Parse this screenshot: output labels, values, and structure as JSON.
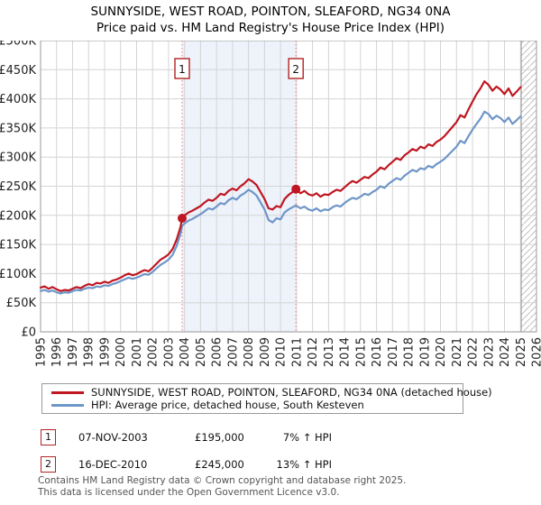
{
  "title": {
    "line1": "SUNNYSIDE, WEST ROAD, POINTON, SLEAFORD, NG34 0NA",
    "line2": "Price paid vs. HM Land Registry's House Price Index (HPI)"
  },
  "legend": {
    "series1": "SUNNYSIDE, WEST ROAD, POINTON, SLEAFORD, NG34 0NA (detached house)",
    "series2": "HPI: Average price, detached house, South Kesteven"
  },
  "annotations": [
    {
      "num": "1",
      "date": "07-NOV-2003",
      "price": "£195,000",
      "hpi": "7% ↑ HPI"
    },
    {
      "num": "2",
      "date": "16-DEC-2010",
      "price": "£245,000",
      "hpi": "13% ↑ HPI"
    }
  ],
  "footer": {
    "line1": "Contains HM Land Registry data © Crown copyright and database right 2025.",
    "line2": "This data is licensed under the Open Government Licence v3.0."
  },
  "colors": {
    "price_line": "#c01621",
    "hpi_line": "#6e96c8",
    "grid": "#d4d4d4",
    "plot_border": "#9a9a9a",
    "sale_dashed_line": "#ef8a8a",
    "shade_fill": "#edf2fb",
    "hatch_stroke": "#c0c0c0",
    "marker_box_border": "#b22222",
    "axis_text": "#222222"
  },
  "chart_data": {
    "type": "line",
    "title": "Price paid vs. HM Land Registry's House Price Index (HPI)",
    "xlabel": "",
    "ylabel": "",
    "x_range": [
      1995,
      2026
    ],
    "y_range": [
      0,
      500000
    ],
    "y_tick_step": 50000,
    "grid": true,
    "legend_position": "bottom",
    "y_tick_labels": [
      "£0",
      "£50K",
      "£100K",
      "£150K",
      "£200K",
      "£250K",
      "£300K",
      "£350K",
      "£400K",
      "£450K",
      "£500K"
    ],
    "x_tick_labels": [
      "1995",
      "1996",
      "1997",
      "1998",
      "1999",
      "2000",
      "2001",
      "2002",
      "2003",
      "2004",
      "2005",
      "2006",
      "2007",
      "2008",
      "2009",
      "2010",
      "2011",
      "2012",
      "2013",
      "2014",
      "2015",
      "2016",
      "2017",
      "2018",
      "2019",
      "2020",
      "2021",
      "2022",
      "2023",
      "2024",
      "2025",
      "2026"
    ],
    "shaded_span": {
      "from": 2003.85,
      "to": 2010.96
    },
    "future_hatch_from": 2025.05,
    "markers": [
      {
        "label": "1",
        "x": 2003.85,
        "value": 195000
      },
      {
        "label": "2",
        "x": 2010.96,
        "value": 245000
      }
    ],
    "series": [
      {
        "name": "SUNNYSIDE, WEST ROAD, POINTON, SLEAFORD, NG34 0NA (detached house)",
        "color": "#c01621",
        "points": [
          [
            1995,
            76000
          ],
          [
            1995.25,
            78000
          ],
          [
            1995.5,
            74000
          ],
          [
            1995.75,
            77000
          ],
          [
            1996,
            73000
          ],
          [
            1996.25,
            70000
          ],
          [
            1996.5,
            72000
          ],
          [
            1996.75,
            71000
          ],
          [
            1997,
            74000
          ],
          [
            1997.25,
            77000
          ],
          [
            1997.5,
            75000
          ],
          [
            1997.75,
            79000
          ],
          [
            1998,
            82000
          ],
          [
            1998.25,
            80000
          ],
          [
            1998.5,
            84000
          ],
          [
            1998.75,
            83000
          ],
          [
            1999,
            86000
          ],
          [
            1999.25,
            84000
          ],
          [
            1999.5,
            88000
          ],
          [
            1999.75,
            90000
          ],
          [
            2000,
            93000
          ],
          [
            2000.25,
            97000
          ],
          [
            2000.5,
            100000
          ],
          [
            2000.75,
            97000
          ],
          [
            2001,
            99000
          ],
          [
            2001.25,
            103000
          ],
          [
            2001.5,
            106000
          ],
          [
            2001.75,
            104000
          ],
          [
            2002,
            110000
          ],
          [
            2002.25,
            117000
          ],
          [
            2002.5,
            124000
          ],
          [
            2002.75,
            128000
          ],
          [
            2003,
            133000
          ],
          [
            2003.25,
            142000
          ],
          [
            2003.5,
            158000
          ],
          [
            2003.75,
            180000
          ],
          [
            2003.85,
            195000
          ],
          [
            2004,
            200000
          ],
          [
            2004.25,
            205000
          ],
          [
            2004.5,
            208000
          ],
          [
            2004.75,
            212000
          ],
          [
            2005,
            216000
          ],
          [
            2005.25,
            222000
          ],
          [
            2005.5,
            227000
          ],
          [
            2005.75,
            225000
          ],
          [
            2006,
            230000
          ],
          [
            2006.25,
            237000
          ],
          [
            2006.5,
            235000
          ],
          [
            2006.75,
            242000
          ],
          [
            2007,
            246000
          ],
          [
            2007.25,
            243000
          ],
          [
            2007.5,
            250000
          ],
          [
            2007.75,
            255000
          ],
          [
            2008,
            262000
          ],
          [
            2008.25,
            258000
          ],
          [
            2008.5,
            252000
          ],
          [
            2008.75,
            240000
          ],
          [
            2009,
            228000
          ],
          [
            2009.25,
            212000
          ],
          [
            2009.5,
            210000
          ],
          [
            2009.75,
            216000
          ],
          [
            2010,
            214000
          ],
          [
            2010.25,
            228000
          ],
          [
            2010.5,
            235000
          ],
          [
            2010.75,
            240000
          ],
          [
            2010.96,
            245000
          ],
          [
            2011.25,
            238000
          ],
          [
            2011.5,
            242000
          ],
          [
            2011.75,
            236000
          ],
          [
            2012,
            234000
          ],
          [
            2012.25,
            238000
          ],
          [
            2012.5,
            232000
          ],
          [
            2012.75,
            236000
          ],
          [
            2013,
            235000
          ],
          [
            2013.25,
            240000
          ],
          [
            2013.5,
            244000
          ],
          [
            2013.75,
            242000
          ],
          [
            2014,
            248000
          ],
          [
            2014.25,
            254000
          ],
          [
            2014.5,
            259000
          ],
          [
            2014.75,
            256000
          ],
          [
            2015,
            261000
          ],
          [
            2015.25,
            266000
          ],
          [
            2015.5,
            264000
          ],
          [
            2015.75,
            270000
          ],
          [
            2016,
            275000
          ],
          [
            2016.25,
            282000
          ],
          [
            2016.5,
            279000
          ],
          [
            2016.75,
            286000
          ],
          [
            2017,
            292000
          ],
          [
            2017.25,
            298000
          ],
          [
            2017.5,
            295000
          ],
          [
            2017.75,
            303000
          ],
          [
            2018,
            308000
          ],
          [
            2018.25,
            314000
          ],
          [
            2018.5,
            311000
          ],
          [
            2018.75,
            318000
          ],
          [
            2019,
            315000
          ],
          [
            2019.25,
            322000
          ],
          [
            2019.5,
            319000
          ],
          [
            2019.75,
            326000
          ],
          [
            2020,
            330000
          ],
          [
            2020.25,
            336000
          ],
          [
            2020.5,
            344000
          ],
          [
            2020.75,
            352000
          ],
          [
            2021,
            360000
          ],
          [
            2021.25,
            372000
          ],
          [
            2021.5,
            368000
          ],
          [
            2021.75,
            382000
          ],
          [
            2022,
            395000
          ],
          [
            2022.25,
            408000
          ],
          [
            2022.5,
            418000
          ],
          [
            2022.75,
            430000
          ],
          [
            2023,
            424000
          ],
          [
            2023.25,
            414000
          ],
          [
            2023.5,
            421000
          ],
          [
            2023.75,
            416000
          ],
          [
            2024,
            408000
          ],
          [
            2024.25,
            418000
          ],
          [
            2024.5,
            405000
          ],
          [
            2024.75,
            412000
          ],
          [
            2025,
            420000
          ]
        ]
      },
      {
        "name": "HPI: Average price, detached house, South Kesteven",
        "color": "#6e96c8",
        "points": [
          [
            1995,
            70000
          ],
          [
            1995.25,
            72000
          ],
          [
            1995.5,
            69000
          ],
          [
            1995.75,
            71000
          ],
          [
            1996,
            68000
          ],
          [
            1996.25,
            66000
          ],
          [
            1996.5,
            68000
          ],
          [
            1996.75,
            67000
          ],
          [
            1997,
            70000
          ],
          [
            1997.25,
            72000
          ],
          [
            1997.5,
            71000
          ],
          [
            1997.75,
            74000
          ],
          [
            1998,
            76000
          ],
          [
            1998.25,
            75000
          ],
          [
            1998.5,
            78000
          ],
          [
            1998.75,
            77000
          ],
          [
            1999,
            80000
          ],
          [
            1999.25,
            79000
          ],
          [
            1999.5,
            82000
          ],
          [
            1999.75,
            84000
          ],
          [
            2000,
            87000
          ],
          [
            2000.25,
            90000
          ],
          [
            2000.5,
            93000
          ],
          [
            2000.75,
            91000
          ],
          [
            2001,
            93000
          ],
          [
            2001.25,
            96000
          ],
          [
            2001.5,
            99000
          ],
          [
            2001.75,
            98000
          ],
          [
            2002,
            103000
          ],
          [
            2002.25,
            109000
          ],
          [
            2002.5,
            115000
          ],
          [
            2002.75,
            119000
          ],
          [
            2003,
            124000
          ],
          [
            2003.25,
            132000
          ],
          [
            2003.5,
            147000
          ],
          [
            2003.75,
            168000
          ],
          [
            2003.85,
            182000
          ],
          [
            2004,
            186000
          ],
          [
            2004.25,
            191000
          ],
          [
            2004.5,
            194000
          ],
          [
            2004.75,
            198000
          ],
          [
            2005,
            202000
          ],
          [
            2005.25,
            207000
          ],
          [
            2005.5,
            212000
          ],
          [
            2005.75,
            210000
          ],
          [
            2006,
            215000
          ],
          [
            2006.25,
            221000
          ],
          [
            2006.5,
            219000
          ],
          [
            2006.75,
            226000
          ],
          [
            2007,
            230000
          ],
          [
            2007.25,
            227000
          ],
          [
            2007.5,
            234000
          ],
          [
            2007.75,
            238000
          ],
          [
            2008,
            244000
          ],
          [
            2008.25,
            240000
          ],
          [
            2008.5,
            234000
          ],
          [
            2008.75,
            222000
          ],
          [
            2009,
            210000
          ],
          [
            2009.25,
            192000
          ],
          [
            2009.5,
            188000
          ],
          [
            2009.75,
            195000
          ],
          [
            2010,
            193000
          ],
          [
            2010.25,
            205000
          ],
          [
            2010.5,
            210000
          ],
          [
            2010.75,
            214000
          ],
          [
            2010.96,
            217000
          ],
          [
            2011.25,
            212000
          ],
          [
            2011.5,
            215000
          ],
          [
            2011.75,
            210000
          ],
          [
            2012,
            208000
          ],
          [
            2012.25,
            212000
          ],
          [
            2012.5,
            207000
          ],
          [
            2012.75,
            210000
          ],
          [
            2013,
            209000
          ],
          [
            2013.25,
            214000
          ],
          [
            2013.5,
            217000
          ],
          [
            2013.75,
            215000
          ],
          [
            2014,
            221000
          ],
          [
            2014.25,
            226000
          ],
          [
            2014.5,
            230000
          ],
          [
            2014.75,
            228000
          ],
          [
            2015,
            232000
          ],
          [
            2015.25,
            237000
          ],
          [
            2015.5,
            235000
          ],
          [
            2015.75,
            240000
          ],
          [
            2016,
            244000
          ],
          [
            2016.25,
            250000
          ],
          [
            2016.5,
            247000
          ],
          [
            2016.75,
            254000
          ],
          [
            2017,
            259000
          ],
          [
            2017.25,
            264000
          ],
          [
            2017.5,
            261000
          ],
          [
            2017.75,
            268000
          ],
          [
            2018,
            273000
          ],
          [
            2018.25,
            278000
          ],
          [
            2018.5,
            275000
          ],
          [
            2018.75,
            281000
          ],
          [
            2019,
            279000
          ],
          [
            2019.25,
            285000
          ],
          [
            2019.5,
            282000
          ],
          [
            2019.75,
            288000
          ],
          [
            2020,
            292000
          ],
          [
            2020.25,
            297000
          ],
          [
            2020.5,
            304000
          ],
          [
            2020.75,
            311000
          ],
          [
            2021,
            318000
          ],
          [
            2021.25,
            328000
          ],
          [
            2021.5,
            324000
          ],
          [
            2021.75,
            336000
          ],
          [
            2022,
            347000
          ],
          [
            2022.25,
            357000
          ],
          [
            2022.5,
            366000
          ],
          [
            2022.75,
            378000
          ],
          [
            2023,
            374000
          ],
          [
            2023.25,
            365000
          ],
          [
            2023.5,
            371000
          ],
          [
            2023.75,
            367000
          ],
          [
            2024,
            360000
          ],
          [
            2024.25,
            368000
          ],
          [
            2024.5,
            357000
          ],
          [
            2024.75,
            363000
          ],
          [
            2025,
            370000
          ]
        ]
      }
    ]
  }
}
